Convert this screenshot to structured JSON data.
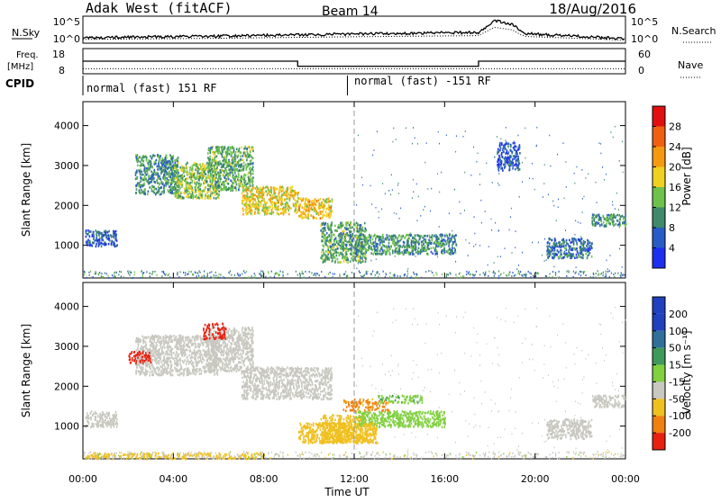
{
  "header": {
    "station": "Adak West (fitACF)",
    "beam": "Beam 14",
    "date": "18/Aug/2016"
  },
  "top_panel": {
    "left_label": "N.Sky",
    "left_ticks": [
      "10^5",
      "10^0"
    ],
    "right_label": "N.Search",
    "right_ticks": [
      "10^5",
      "10^0"
    ]
  },
  "freq_panel": {
    "left_label_1": "Freq.",
    "left_label_2": "[MHz]",
    "left_ticks": [
      "18",
      "8"
    ],
    "right_label": "Nave",
    "right_ticks": [
      "60",
      "0"
    ]
  },
  "cpid_panel": {
    "label": "CPID",
    "segment_1": "normal (fast) 151 RF",
    "segment_2": "normal (fast) -151 RF"
  },
  "x_axis": {
    "ticks": [
      "00:00",
      "04:00",
      "08:00",
      "12:00",
      "16:00",
      "20:00",
      "00:00"
    ],
    "label": "Time UT"
  },
  "power_panel": {
    "ylabel": "Slant Range [km]",
    "yticks": [
      "1000",
      "2000",
      "3000",
      "4000"
    ],
    "colorbar_label": "Power [dB]",
    "colorbar_ticks": [
      "4",
      "8",
      "12",
      "16",
      "20",
      "24",
      "28"
    ],
    "colors": [
      "#1c2ff0",
      "#2a5cc8",
      "#3f8a6a",
      "#6ec24c",
      "#f0d020",
      "#f59a10",
      "#f06010",
      "#e01010"
    ]
  },
  "velocity_panel": {
    "ylabel": "Slant Range [km]",
    "yticks": [
      "1000",
      "2000",
      "3000",
      "4000"
    ],
    "colorbar_label": "Velocity [m s⁻¹]",
    "colorbar_ticks": [
      "200",
      "100",
      "50",
      "15",
      "-15",
      "-50",
      "-100",
      "-200"
    ],
    "colors": [
      "#2040c0",
      "#2f6f9a",
      "#3f9a5a",
      "#80d040",
      "#c8c8c0",
      "#f0c020",
      "#f08010",
      "#e82010"
    ]
  },
  "chart_data": {
    "type": "heatmap",
    "x_range_hours": [
      0,
      24
    ],
    "y_range_km": [
      180,
      4600
    ],
    "power_regions": [
      {
        "t": [
          0.1,
          1.5
        ],
        "r": [
          1000,
          1400
        ],
        "db": 6
      },
      {
        "t": [
          2.3,
          4.2
        ],
        "r": [
          2300,
          3300
        ],
        "db": 10
      },
      {
        "t": [
          4.0,
          6.0
        ],
        "r": [
          2200,
          3100
        ],
        "db": 14
      },
      {
        "t": [
          5.5,
          7.5
        ],
        "r": [
          2400,
          3500
        ],
        "db": 12
      },
      {
        "t": [
          7.0,
          9.5
        ],
        "r": [
          1800,
          2500
        ],
        "db": 18
      },
      {
        "t": [
          9.5,
          11.0
        ],
        "r": [
          1700,
          2200
        ],
        "db": 20
      },
      {
        "t": [
          10.5,
          12.5
        ],
        "r": [
          600,
          1600
        ],
        "db": 12
      },
      {
        "t": [
          12.0,
          16.5
        ],
        "r": [
          800,
          1300
        ],
        "db": 10
      },
      {
        "t": [
          18.3,
          19.3
        ],
        "r": [
          2900,
          3600
        ],
        "db": 6
      },
      {
        "t": [
          20.5,
          22.5
        ],
        "r": [
          700,
          1200
        ],
        "db": 8
      },
      {
        "t": [
          22.5,
          24.0
        ],
        "r": [
          1500,
          1800
        ],
        "db": 10
      }
    ],
    "velocity_regions": [
      {
        "t": [
          0.1,
          1.5
        ],
        "r": [
          1000,
          1400
        ],
        "v": 0
      },
      {
        "t": [
          2.3,
          6.0
        ],
        "r": [
          2300,
          3300
        ],
        "v": 0
      },
      {
        "t": [
          5.5,
          7.5
        ],
        "r": [
          2400,
          3500
        ],
        "v": 0
      },
      {
        "t": [
          7.0,
          11.0
        ],
        "r": [
          1700,
          2500
        ],
        "v": 0
      },
      {
        "t": [
          10.5,
          12.5
        ],
        "r": [
          600,
          1300
        ],
        "v": -30
      },
      {
        "t": [
          12.0,
          16.0
        ],
        "r": [
          1000,
          1400
        ],
        "v": 30
      },
      {
        "t": [
          9.5,
          13.0
        ],
        "r": [
          600,
          1100
        ],
        "v": -30
      },
      {
        "t": [
          20.5,
          22.5
        ],
        "r": [
          700,
          1200
        ],
        "v": 0
      },
      {
        "t": [
          22.5,
          24.0
        ],
        "r": [
          1500,
          1800
        ],
        "v": 0
      }
    ],
    "velocity_edge_regions": [
      {
        "t": [
          5.3,
          6.3
        ],
        "r": [
          3200,
          3600
        ],
        "v": -150
      },
      {
        "t": [
          2.0,
          3.0
        ],
        "r": [
          2600,
          2900
        ],
        "v": -150
      },
      {
        "t": [
          11.5,
          13.5
        ],
        "r": [
          1400,
          1700
        ],
        "v": -60
      },
      {
        "t": [
          13.0,
          15.0
        ],
        "r": [
          1600,
          1800
        ],
        "v": 40
      },
      {
        "t": [
          0.1,
          8.0
        ],
        "r": [
          200,
          350
        ],
        "v": -30
      }
    ],
    "nsky_trend": [
      [
        0,
        1.0
      ],
      [
        6,
        1.3
      ],
      [
        12,
        1.7
      ],
      [
        17.5,
        2.0
      ],
      [
        18.2,
        4.2
      ],
      [
        19.0,
        3.5
      ],
      [
        19.5,
        1.8
      ],
      [
        24,
        0.8
      ]
    ],
    "freq_segments": [
      {
        "t": [
          0,
          9.5
        ],
        "freq": 13
      },
      {
        "t": [
          9.5,
          17.5
        ],
        "freq": 11
      },
      {
        "t": [
          17.5,
          24
        ],
        "freq": 13
      }
    ],
    "nave": 12,
    "cpid_change_hour": 11.7
  }
}
